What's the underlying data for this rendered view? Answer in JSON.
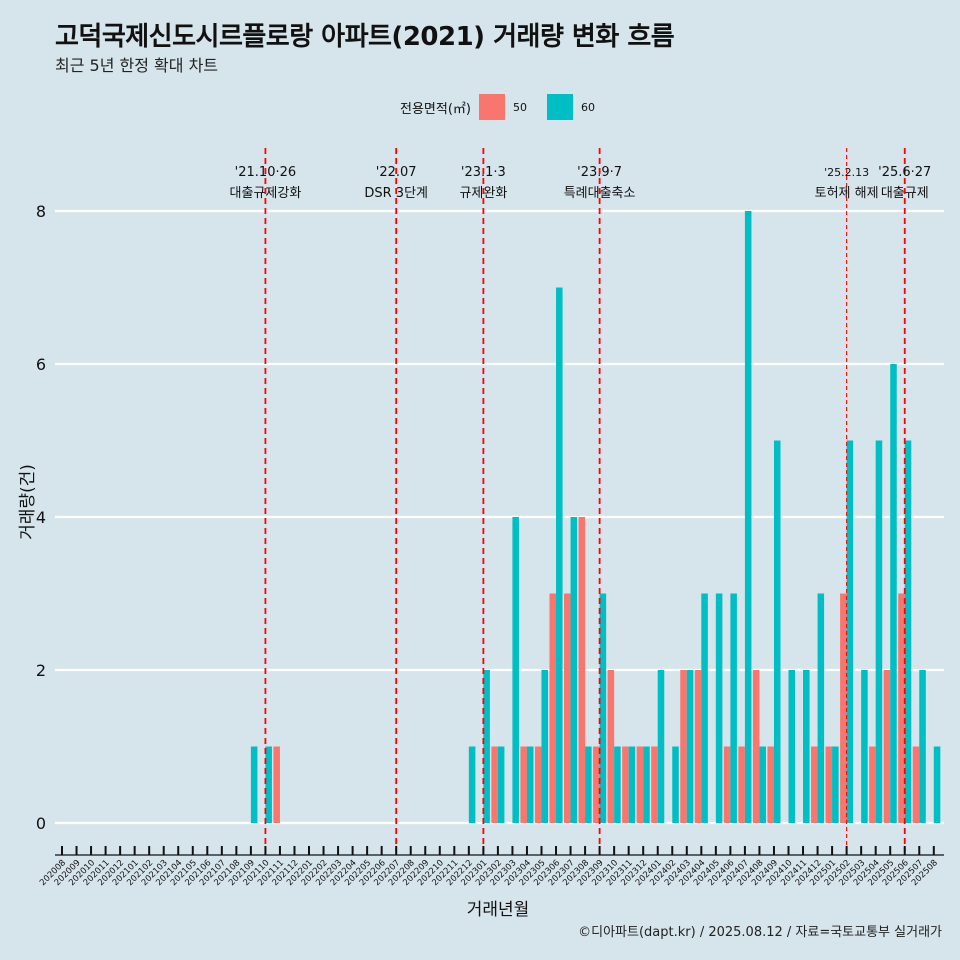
{
  "header": {
    "title": "고덕국제신도시르플로랑 아파트(2021) 거래량 변화 흐름",
    "subtitle": "최근 5년 한정 확대 차트"
  },
  "caption": "©디아파트(dapt.kr) / 2025.08.12 / 자료=국토교통부 실거래가",
  "legend": {
    "title": "전용면적(㎡)",
    "items": [
      {
        "label": "50",
        "color": "#f8766d"
      },
      {
        "label": "60",
        "color": "#00bfc4"
      }
    ]
  },
  "chart_data": {
    "type": "bar",
    "xlabel": "거래년월",
    "ylabel": "거래량(건)",
    "ylim": [
      0,
      8.5
    ],
    "yticks": [
      0,
      2,
      4,
      6,
      8
    ],
    "grid": true,
    "legend_position": "top",
    "categories": [
      "202008",
      "202009",
      "202010",
      "202011",
      "202012",
      "202101",
      "202102",
      "202103",
      "202104",
      "202105",
      "202106",
      "202107",
      "202108",
      "202109",
      "202110",
      "202111",
      "202112",
      "202201",
      "202202",
      "202203",
      "202204",
      "202205",
      "202206",
      "202207",
      "202208",
      "202209",
      "202210",
      "202211",
      "202212",
      "202301",
      "202302",
      "202303",
      "202304",
      "202305",
      "202306",
      "202307",
      "202308",
      "202309",
      "202310",
      "202311",
      "202312",
      "202401",
      "202402",
      "202403",
      "202404",
      "202405",
      "202406",
      "202407",
      "202408",
      "202409",
      "202410",
      "202411",
      "202412",
      "202501",
      "202502",
      "202503",
      "202504",
      "202505",
      "202506",
      "202507",
      "202508"
    ],
    "series": [
      {
        "name": "50",
        "color": "#f8766d",
        "values": [
          0,
          0,
          0,
          0,
          0,
          0,
          0,
          0,
          0,
          0,
          0,
          0,
          0,
          0,
          0,
          1,
          0,
          0,
          0,
          0,
          0,
          0,
          0,
          0,
          0,
          0,
          0,
          0,
          0,
          0,
          1,
          0,
          1,
          1,
          3,
          3,
          4,
          1,
          2,
          1,
          1,
          1,
          0,
          2,
          2,
          0,
          1,
          1,
          2,
          1,
          0,
          0,
          1,
          1,
          3,
          0,
          1,
          2,
          3,
          1,
          0
        ]
      },
      {
        "name": "60",
        "color": "#00bfc4",
        "values": [
          0,
          0,
          0,
          0,
          0,
          0,
          0,
          0,
          0,
          0,
          0,
          0,
          0,
          1,
          1,
          0,
          0,
          0,
          0,
          0,
          0,
          0,
          0,
          0,
          0,
          0,
          0,
          0,
          1,
          2,
          1,
          4,
          1,
          2,
          7,
          4,
          1,
          3,
          1,
          1,
          1,
          2,
          1,
          2,
          3,
          3,
          3,
          8,
          1,
          5,
          2,
          2,
          3,
          1,
          5,
          2,
          5,
          6,
          5,
          2,
          1
        ]
      }
    ],
    "annotations": [
      {
        "x": "202110",
        "date": "'21.10·26",
        "text": "대출규제강화",
        "style": "thick"
      },
      {
        "x": "202207",
        "date": "'22.07",
        "text": "DSR 3단계",
        "style": "thick"
      },
      {
        "x": "202301",
        "date": "'23.1·3",
        "text": "규제완화",
        "style": "thick"
      },
      {
        "x": "202309",
        "date": "'23.9·7",
        "text": "특례대출축소",
        "style": "thick"
      },
      {
        "x": "202502",
        "date": "'25.2.13",
        "text": "토허제 해제",
        "style": "thin"
      },
      {
        "x": "202506",
        "date": "'25.6·27",
        "text": "대출규제",
        "style": "thick"
      }
    ]
  }
}
